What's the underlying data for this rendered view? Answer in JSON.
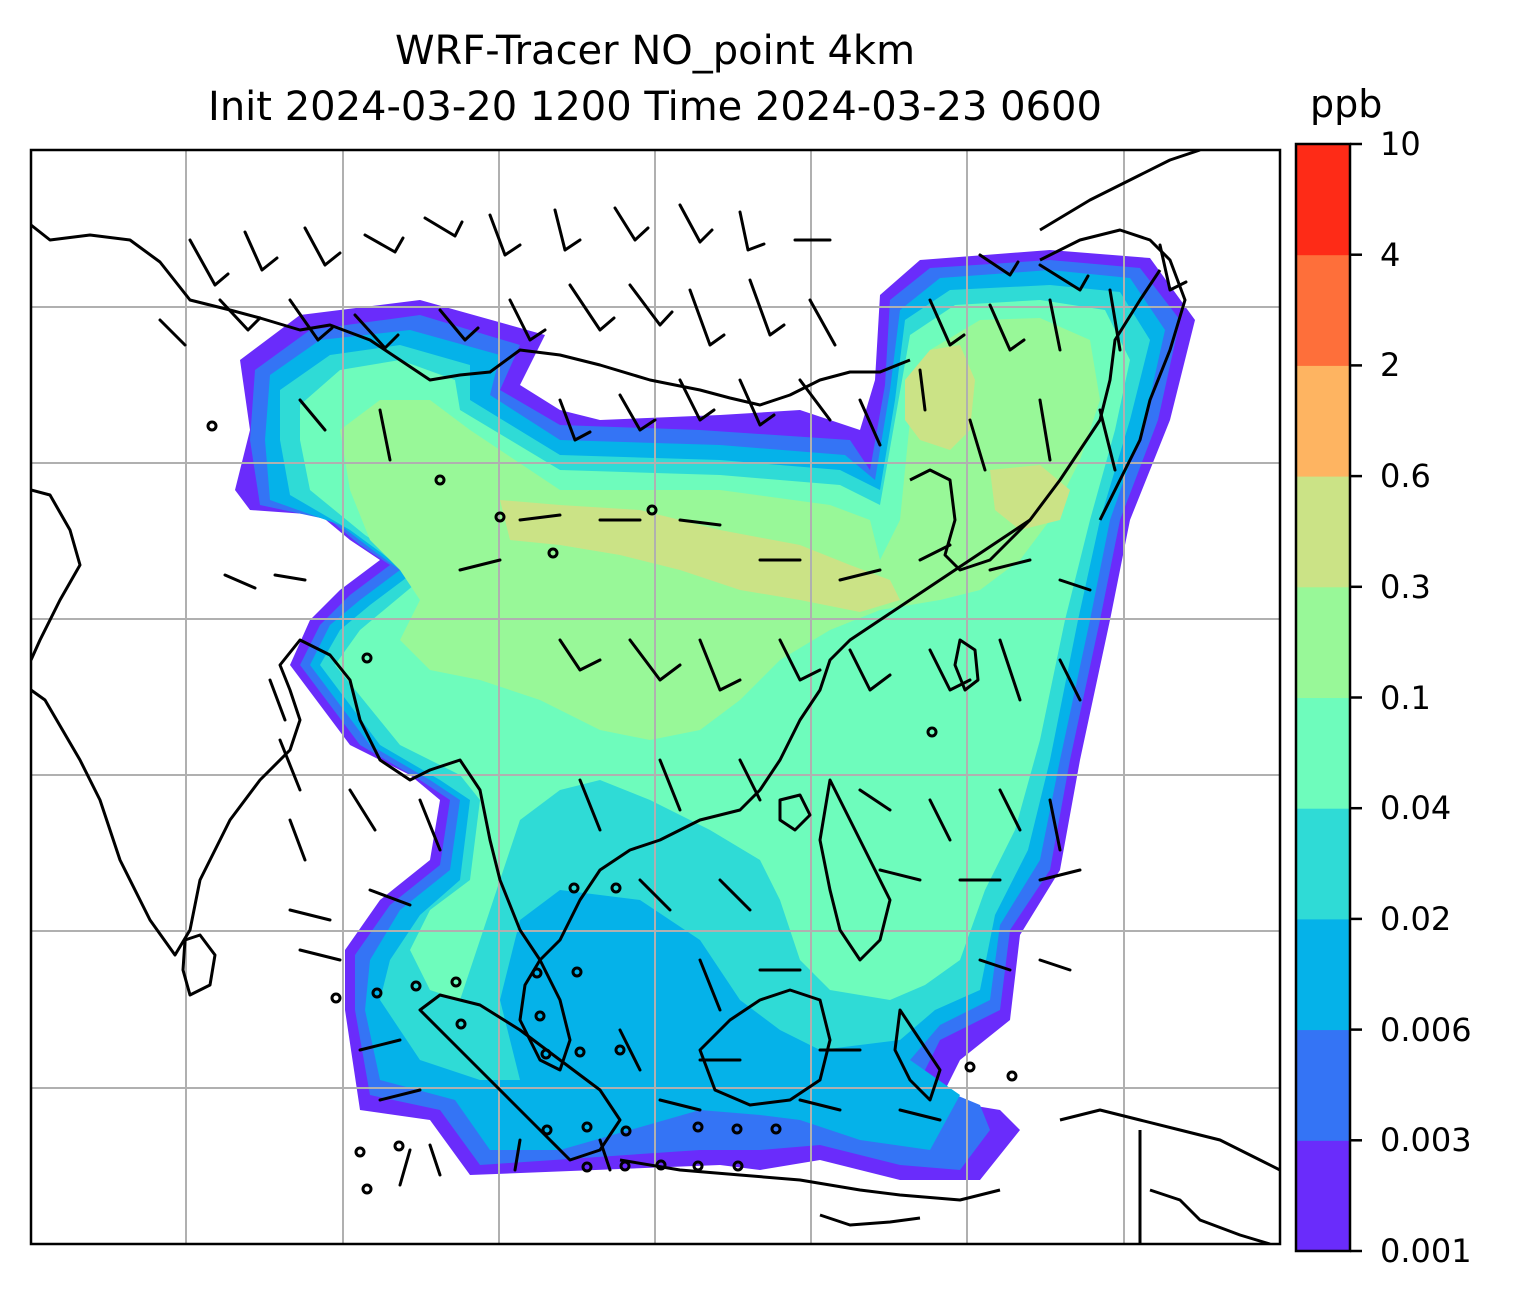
{
  "title": {
    "line1": "WRF-Tracer NO_point 4km",
    "line2": "Init 2024-03-20 1200 Time 2024-03-23 0600"
  },
  "colorbar": {
    "unit": "ppb",
    "levels": [
      "0.001",
      "0.003",
      "0.006",
      "0.02",
      "0.04",
      "0.1",
      "0.3",
      "0.6",
      "2",
      "4",
      "10"
    ],
    "colors": [
      "#6a2cfb",
      "#3474f5",
      "#05b2e9",
      "#2fdbd6",
      "#6efcbc",
      "#98f898",
      "#cbe386",
      "#feb461",
      "#fe6f3a",
      "#fe2b17"
    ]
  },
  "map": {
    "projection": "lat-lon",
    "gridlines": true,
    "coastlines": true,
    "wind_barbs": true,
    "gridline_color": "#b0b0b0",
    "coast_color": "#000000"
  }
}
